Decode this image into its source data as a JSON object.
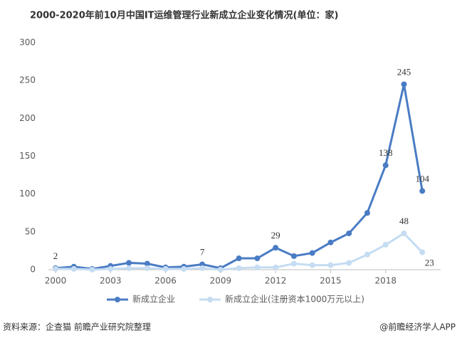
{
  "chart_data": {
    "type": "line",
    "title": "2000-2020年前10月中国IT运维管理行业新成立企业变化情况(单位：家)",
    "x": [
      2000,
      2001,
      2002,
      2003,
      2004,
      2005,
      2006,
      2007,
      2008,
      2009,
      2010,
      2011,
      2012,
      2013,
      2014,
      2015,
      2016,
      2017,
      2018,
      2019,
      2020
    ],
    "xlim": [
      2000,
      2021
    ],
    "xticks": [
      2000,
      2003,
      2006,
      2009,
      2012,
      2015,
      2018
    ],
    "ylim": [
      0,
      300
    ],
    "yticks": [
      0,
      50,
      100,
      150,
      200,
      250,
      300
    ],
    "series": [
      {
        "name": "新成立企业",
        "color": "#4a7cc4",
        "values": [
          2,
          4,
          1,
          5,
          9,
          8,
          3,
          4,
          7,
          2,
          15,
          15,
          29,
          18,
          22,
          36,
          48,
          75,
          138,
          245,
          104
        ],
        "value_labels": [
          "2",
          null,
          null,
          null,
          null,
          null,
          null,
          null,
          "7",
          null,
          null,
          null,
          "29",
          null,
          null,
          null,
          null,
          null,
          "138",
          "245",
          "104"
        ]
      },
      {
        "name": "新成立企业(注册资本1000万元以上)",
        "color": "#c5dcf2",
        "values": [
          1,
          1,
          0,
          1,
          2,
          2,
          1,
          1,
          2,
          0,
          2,
          3,
          3,
          8,
          6,
          6,
          9,
          20,
          33,
          48,
          23
        ],
        "value_labels": [
          null,
          null,
          null,
          null,
          null,
          null,
          null,
          null,
          null,
          null,
          null,
          null,
          null,
          null,
          null,
          null,
          null,
          null,
          null,
          "48",
          "23"
        ]
      }
    ],
    "legend": "bottom",
    "source": "资料来源：企查猫 前瞻产业研究院整理",
    "credit": "@前瞻经济学人APP"
  }
}
